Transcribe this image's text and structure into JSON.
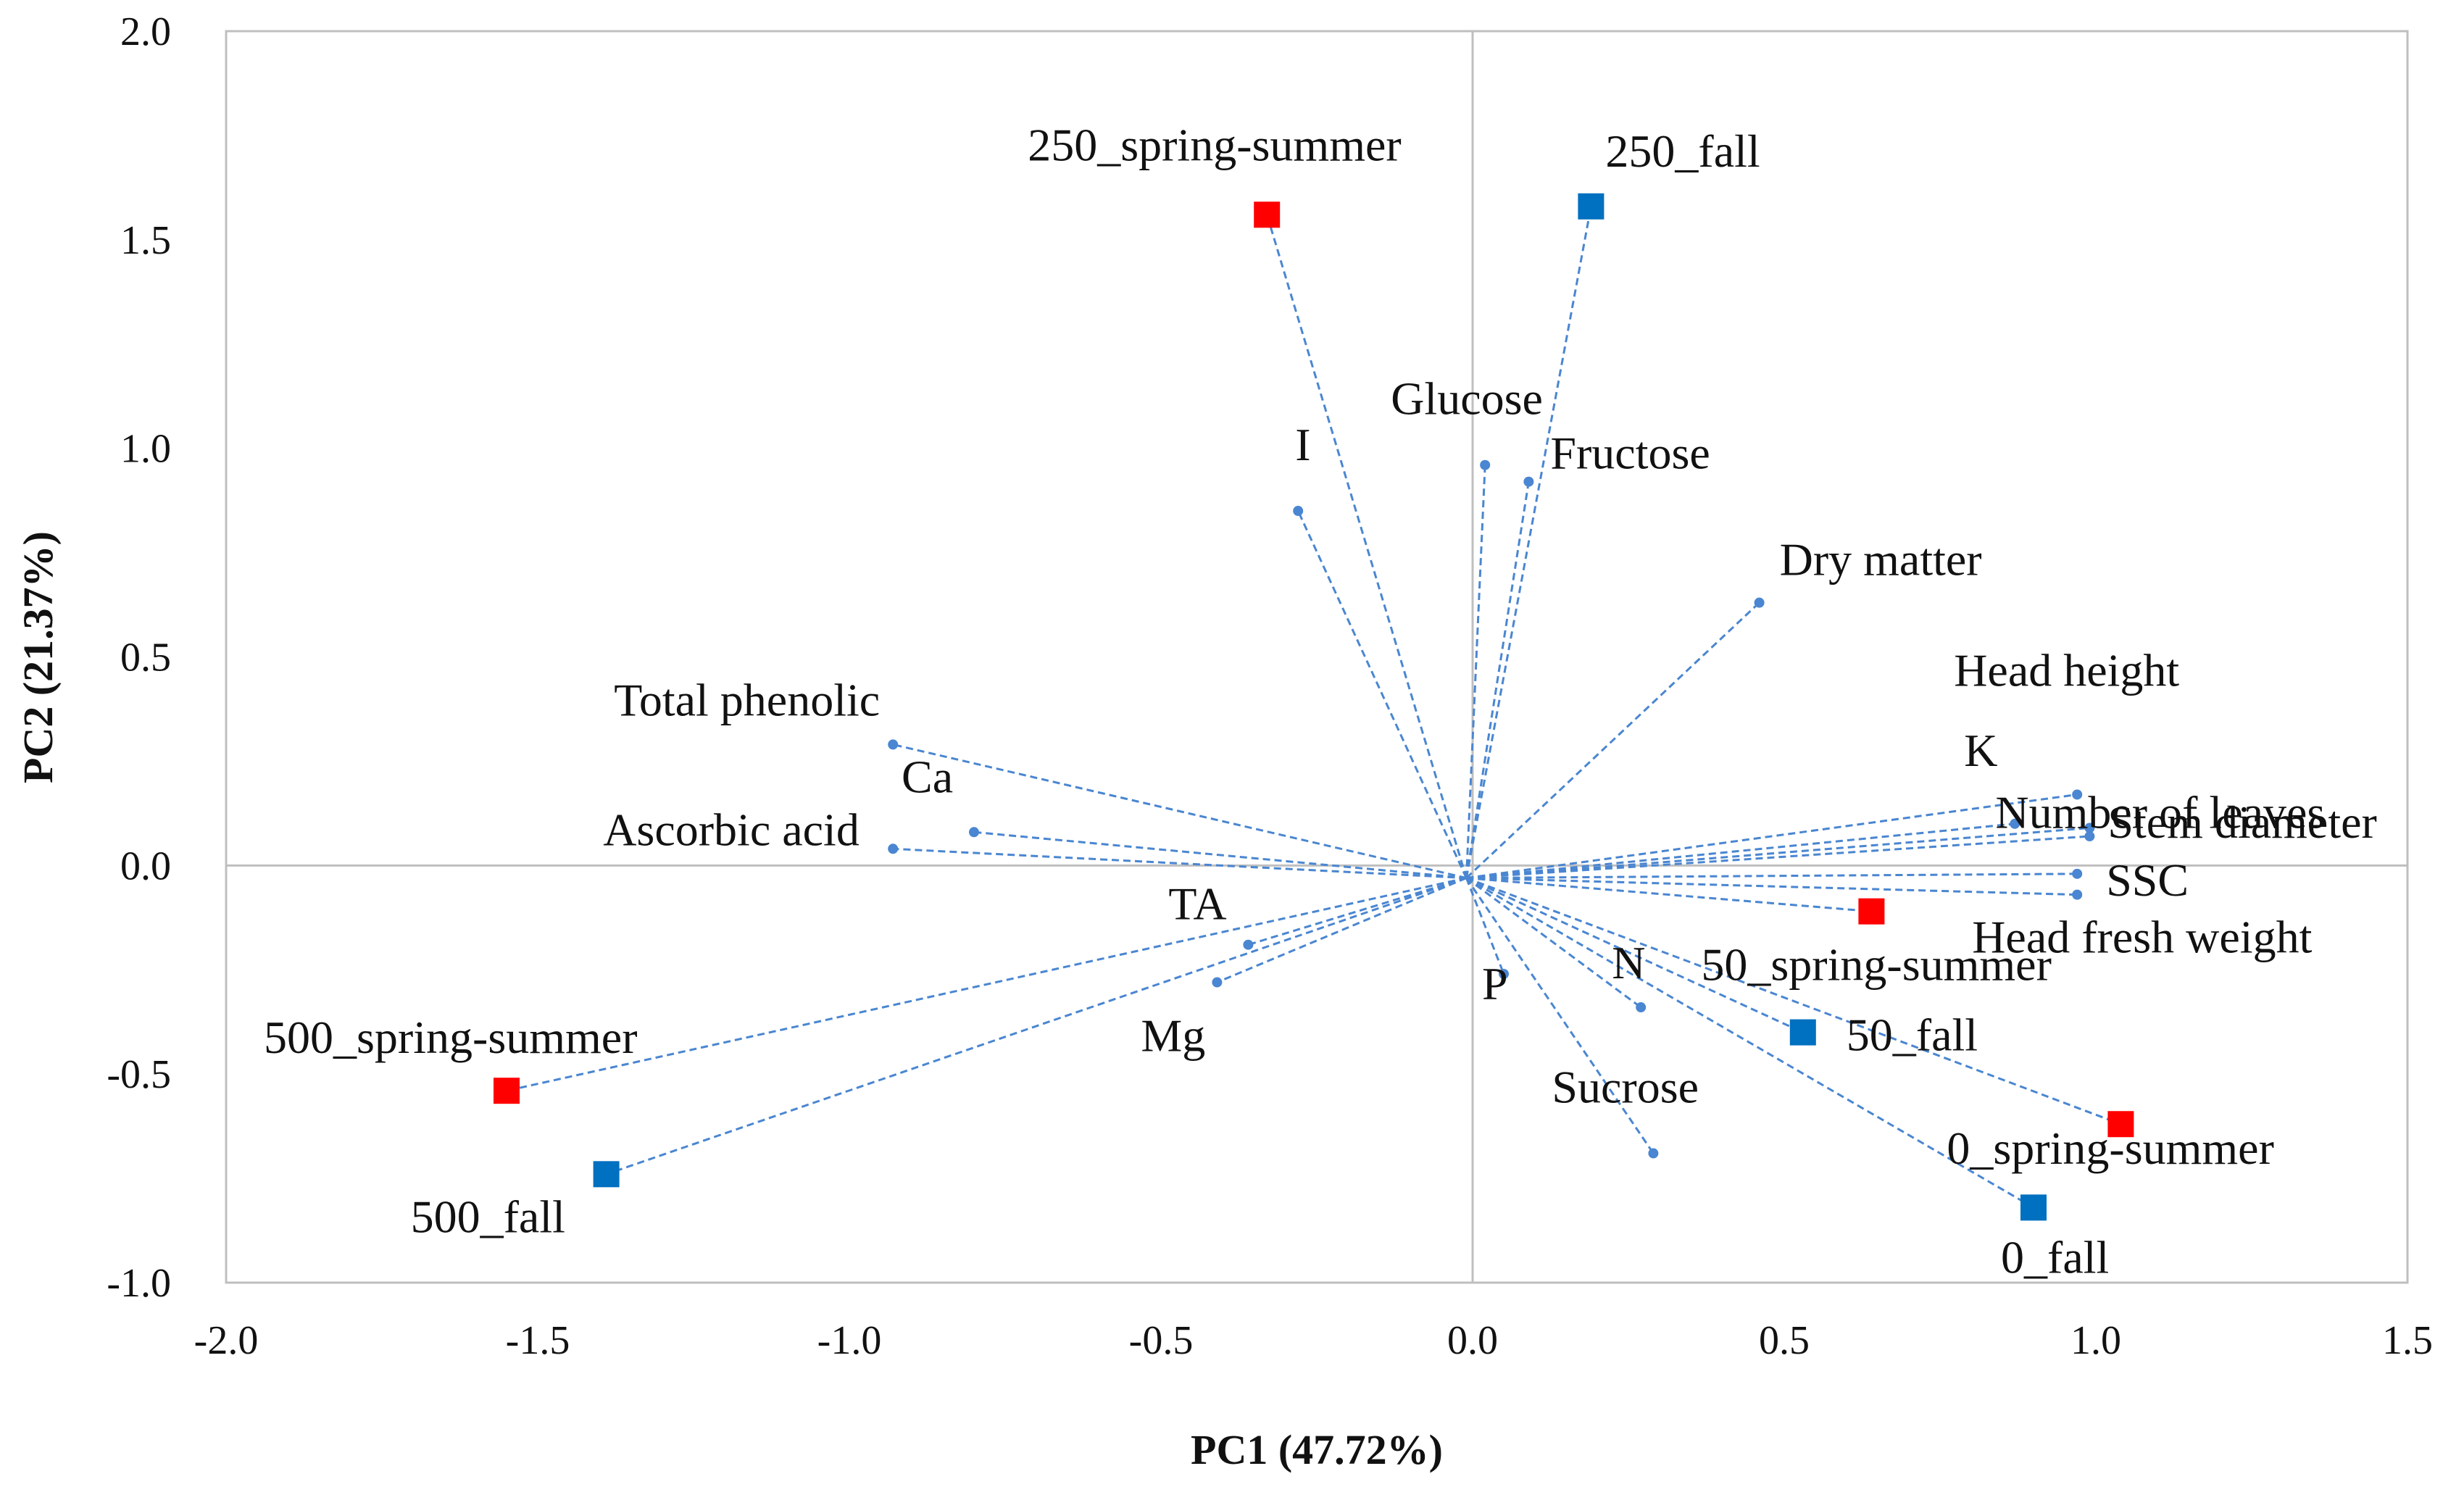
{
  "chart_data": {
    "type": "scatter",
    "title": "",
    "xlabel": "PC1 (47.72%)",
    "ylabel": "PC2 (21.37%)",
    "xlim": [
      -2.0,
      1.5
    ],
    "ylim": [
      -1.0,
      2.0
    ],
    "x_ticks": [
      "-2.0",
      "-1.5",
      "-1.0",
      "-0.5",
      "0.0",
      "0.5",
      "1.0",
      "1.5"
    ],
    "y_ticks": [
      "2.0",
      "1.5",
      "1.0",
      "0.5",
      "0.0",
      "-0.5",
      "-1.0"
    ],
    "grid": false,
    "legend": "none",
    "colors": {
      "spring_summer": "#ff0000",
      "fall": "#0070c0",
      "loading": "#4a86d1",
      "axis": "#bfbfbf"
    },
    "samples": [
      {
        "label": "250_spring-summer",
        "season": "spring_summer",
        "x": -0.33,
        "y": 1.56
      },
      {
        "label": "250_fall",
        "season": "fall",
        "x": 0.19,
        "y": 1.58
      },
      {
        "label": "500_spring-summer",
        "season": "spring_summer",
        "x": -1.55,
        "y": -0.54
      },
      {
        "label": "500_fall",
        "season": "fall",
        "x": -1.39,
        "y": -0.74
      },
      {
        "label": "50_spring-summer",
        "season": "spring_summer",
        "x": 0.64,
        "y": -0.11
      },
      {
        "label": "50_fall",
        "season": "fall",
        "x": 0.53,
        "y": -0.4
      },
      {
        "label": "0_spring-summer",
        "season": "spring_summer",
        "x": 1.04,
        "y": -0.62
      },
      {
        "label": "0_fall",
        "season": "fall",
        "x": 0.9,
        "y": -0.82
      }
    ],
    "loadings": [
      {
        "label": "I",
        "x": -0.28,
        "y": 0.85
      },
      {
        "label": "Glucose",
        "x": 0.02,
        "y": 0.96
      },
      {
        "label": "Fructose",
        "x": 0.09,
        "y": 0.92
      },
      {
        "label": "Dry matter",
        "x": 0.46,
        "y": 0.63
      },
      {
        "label": "Head height",
        "x": 0.97,
        "y": 0.17
      },
      {
        "label": "K",
        "x": 0.87,
        "y": 0.1
      },
      {
        "label": "Number of leaves",
        "x": 0.99,
        "y": 0.09
      },
      {
        "label": "Stem diameter",
        "x": 0.99,
        "y": 0.07
      },
      {
        "label": "SSC",
        "x": 0.97,
        "y": -0.02
      },
      {
        "label": "Head fresh weight",
        "x": 0.97,
        "y": -0.07
      },
      {
        "label": "Total phenolic",
        "x": -0.93,
        "y": 0.29
      },
      {
        "label": "Ca",
        "x": -0.8,
        "y": 0.08
      },
      {
        "label": "Ascorbic acid",
        "x": -0.93,
        "y": 0.04
      },
      {
        "label": "TA",
        "x": -0.36,
        "y": -0.19
      },
      {
        "label": "Mg",
        "x": -0.41,
        "y": -0.28
      },
      {
        "label": "P",
        "x": 0.05,
        "y": -0.26
      },
      {
        "label": "N",
        "x": 0.27,
        "y": -0.34
      },
      {
        "label": "Sucrose",
        "x": 0.29,
        "y": -0.69
      }
    ]
  }
}
